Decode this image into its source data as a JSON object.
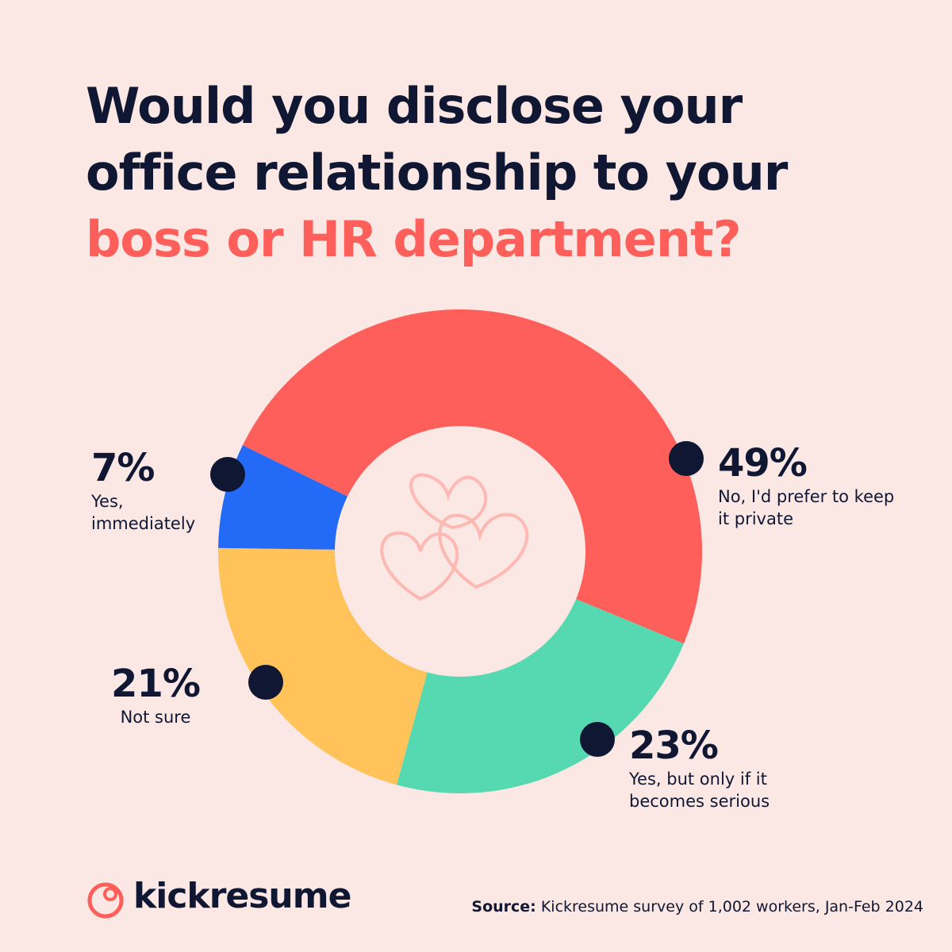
{
  "brand": "kickresume",
  "chart_data": {
    "type": "donut",
    "title": "Would you disclose your office relationship to your",
    "title_highlight": "boss or HR department?",
    "categories": [
      "No, I'd prefer to keep it private",
      "Yes, but only if it becomes serious",
      "Not sure",
      "Yes, immediately"
    ],
    "values": [
      49,
      23,
      21,
      7
    ],
    "value_labels": [
      "49%",
      "23%",
      "21%",
      "7%"
    ],
    "colors": [
      "#ff5f5a",
      "#56d8b1",
      "#ffc35a",
      "#236af7"
    ],
    "source_label": "Source:",
    "source": "Kickresume survey of 1,002 workers, Jan-Feb 2024"
  }
}
